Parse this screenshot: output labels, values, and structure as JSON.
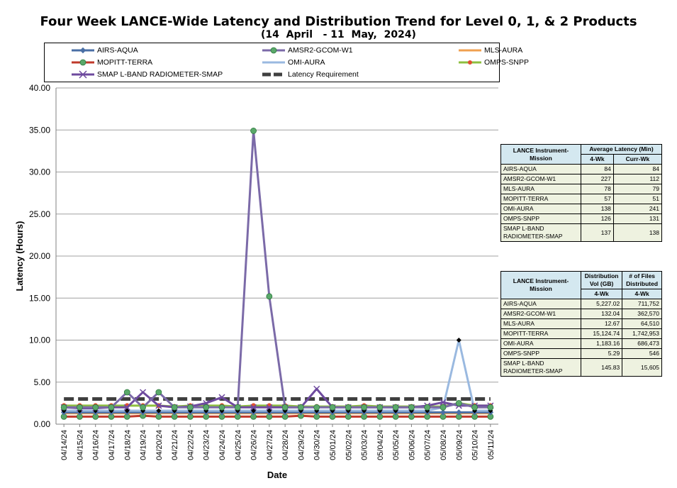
{
  "chart_data": {
    "type": "line",
    "title": "Four Week LANCE-Wide Latency and Distribution Trend for Level 0, 1, & 2 Products",
    "subtitle": "(14  April   - 11  May,  2024)",
    "xlabel": "Date",
    "ylabel": "Latency (Hours)",
    "ylim": [
      0,
      40
    ],
    "yticks": [
      "0.00",
      "5.00",
      "10.00",
      "15.00",
      "20.00",
      "25.00",
      "30.00",
      "35.00",
      "40.00"
    ],
    "grid": true,
    "legend_position": "top",
    "categories": [
      "04/14/24",
      "04/15/24",
      "04/16/24",
      "04/17/24",
      "04/18/24",
      "04/19/24",
      "04/20/24",
      "04/21/24",
      "04/22/24",
      "04/23/24",
      "04/24/24",
      "04/25/24",
      "04/26/24",
      "04/27/24",
      "04/28/24",
      "04/29/24",
      "04/30/24",
      "05/01/24",
      "05/02/24",
      "05/03/24",
      "05/04/24",
      "05/05/24",
      "05/06/24",
      "05/07/24",
      "05/08/24",
      "05/09/24",
      "05/10/24",
      "05/11/24"
    ],
    "series": [
      {
        "name": "AIRS-AQUA",
        "color": "#4a6fa5",
        "marker": "diamond",
        "values": [
          1.4,
          1.4,
          1.4,
          1.4,
          1.4,
          1.4,
          1.4,
          1.4,
          1.4,
          1.4,
          1.4,
          1.4,
          1.4,
          1.4,
          1.4,
          1.4,
          1.4,
          1.4,
          1.4,
          1.4,
          1.4,
          1.4,
          1.4,
          1.4,
          1.4,
          1.4,
          1.4,
          1.4
        ]
      },
      {
        "name": "AMSR2-GCOM-W1",
        "color": "#7b6aa8",
        "marker": "circle-green",
        "values": [
          2.0,
          2.0,
          2.0,
          2.0,
          3.8,
          2.0,
          3.8,
          2.0,
          2.0,
          2.0,
          2.0,
          2.0,
          34.9,
          15.2,
          2.0,
          2.0,
          2.0,
          2.0,
          2.0,
          2.0,
          2.0,
          2.0,
          2.0,
          2.0,
          2.0,
          2.5,
          2.0,
          2.0
        ]
      },
      {
        "name": "MLS-AURA",
        "color": "#f0a050",
        "marker": "none",
        "values": [
          1.3,
          1.3,
          1.3,
          1.3,
          1.3,
          1.3,
          1.3,
          1.3,
          1.3,
          1.3,
          1.3,
          1.3,
          1.3,
          1.3,
          1.3,
          1.3,
          1.3,
          1.3,
          1.3,
          1.3,
          1.3,
          1.3,
          1.3,
          1.3,
          1.3,
          1.3,
          1.3,
          1.3
        ]
      },
      {
        "name": "MOPITT-TERRA",
        "color": "#c0392b",
        "marker": "circle-green",
        "values": [
          0.9,
          0.9,
          0.9,
          0.9,
          0.9,
          1.0,
          0.9,
          0.9,
          0.9,
          0.9,
          0.9,
          0.9,
          0.9,
          0.9,
          0.9,
          1.0,
          0.9,
          0.9,
          0.9,
          0.9,
          0.9,
          0.9,
          0.9,
          0.9,
          0.9,
          0.9,
          0.9,
          0.9
        ]
      },
      {
        "name": "OMI-AURA",
        "color": "#9ab9e0",
        "marker": "diamond-black",
        "values": [
          1.6,
          1.6,
          1.6,
          1.6,
          1.6,
          1.6,
          1.6,
          1.6,
          1.6,
          1.6,
          1.6,
          1.6,
          1.6,
          1.6,
          1.6,
          1.6,
          1.6,
          1.6,
          1.6,
          1.6,
          1.6,
          1.6,
          1.6,
          1.6,
          2.0,
          10.0,
          1.6,
          1.6
        ]
      },
      {
        "name": "OMPS-SNPP",
        "color": "#8dbf3f",
        "marker": "circle-red",
        "values": [
          2.2,
          2.2,
          2.2,
          2.2,
          2.2,
          2.2,
          2.2,
          2.1,
          2.2,
          2.2,
          2.2,
          2.1,
          2.2,
          2.2,
          2.2,
          2.1,
          2.1,
          2.1,
          2.1,
          2.2,
          2.1,
          2.1,
          2.1,
          2.1,
          2.1,
          2.5,
          2.2,
          2.2
        ]
      },
      {
        "name": "SMAP L-BAND RADIOMETER-SMAP",
        "color": "#6e4a9e",
        "marker": "x",
        "values": [
          2.0,
          1.9,
          1.9,
          2.0,
          2.0,
          3.8,
          2.2,
          2.0,
          2.1,
          2.5,
          3.2,
          2.0,
          2.0,
          2.0,
          2.0,
          2.0,
          4.2,
          2.0,
          2.0,
          2.0,
          2.0,
          2.0,
          2.0,
          2.2,
          2.6,
          2.2,
          2.2,
          2.2
        ]
      },
      {
        "name": "Latency Requirement",
        "color": "#404040",
        "marker": "dash",
        "values": [
          3,
          3,
          3,
          3,
          3,
          3,
          3,
          3,
          3,
          3,
          3,
          3,
          3,
          3,
          3,
          3,
          3,
          3,
          3,
          3,
          3,
          3,
          3,
          3,
          3,
          3,
          3,
          3
        ]
      }
    ]
  },
  "table1": {
    "h1": "LANCE Instrument-Mission",
    "h2": "Average Latency (Min)",
    "h3": "4-Wk",
    "h4": "Curr-Wk",
    "rows": [
      {
        "name": "AIRS-AQUA",
        "a": "84",
        "b": "84"
      },
      {
        "name": "AMSR2-GCOM-W1",
        "a": "227",
        "b": "112"
      },
      {
        "name": "MLS-AURA",
        "a": "78",
        "b": "79"
      },
      {
        "name": "MOPITT-TERRA",
        "a": "57",
        "b": "51"
      },
      {
        "name": "OMI-AURA",
        "a": "138",
        "b": "241"
      },
      {
        "name": "OMPS-SNPP",
        "a": "126",
        "b": "131"
      },
      {
        "name": "SMAP L-BAND RADIOMETER-SMAP",
        "a": "137",
        "b": "138"
      }
    ]
  },
  "table2": {
    "h1": "LANCE Instrument-Mission",
    "h2": "Distribution Vol (GB)",
    "h3": "# of Files Distributed",
    "h4": "4-Wk",
    "h5": "4-Wk",
    "rows": [
      {
        "name": "AIRS-AQUA",
        "a": "5,227.02",
        "b": "711,752"
      },
      {
        "name": "AMSR2-GCOM-W1",
        "a": "132.04",
        "b": "362,570"
      },
      {
        "name": "MLS-AURA",
        "a": "12.67",
        "b": "64,510"
      },
      {
        "name": "MOPITT-TERRA",
        "a": "15,124.74",
        "b": "1,742,953"
      },
      {
        "name": "OMI-AURA",
        "a": "1,183.16",
        "b": "686,473"
      },
      {
        "name": "OMPS-SNPP",
        "a": "5.29",
        "b": "546"
      },
      {
        "name": "SMAP L-BAND RADIOMETER-SMAP",
        "a": "145.83",
        "b": "15,605"
      }
    ]
  }
}
